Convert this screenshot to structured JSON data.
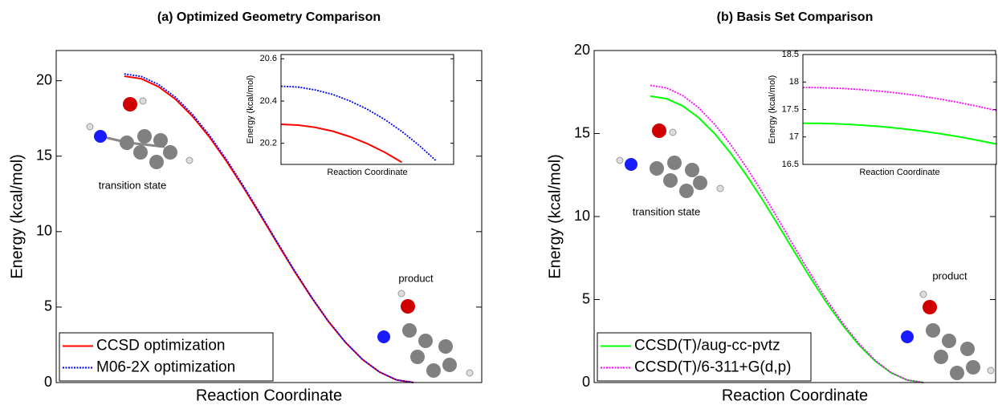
{
  "chart_data": [
    {
      "type": "line",
      "title": "(a) Optimized Geometry Comparison",
      "xlabel": "Reaction Coordinate",
      "ylabel": "Energy (kcal/mol)",
      "x": [
        16,
        20,
        24,
        28,
        32,
        36,
        40,
        44,
        48,
        52,
        56,
        60,
        64,
        68,
        72,
        76,
        80,
        84
      ],
      "xlim": [
        0,
        100
      ],
      "ylim": [
        0,
        22
      ],
      "yticks": [
        0,
        5,
        10,
        15,
        20
      ],
      "legend": "lower left",
      "series": [
        {
          "name": "CCSD optimization",
          "color": "#ff0000",
          "linestyle": "solid",
          "values": [
            20.3,
            20.13,
            19.61,
            18.78,
            17.65,
            16.27,
            14.67,
            12.93,
            11.09,
            9.21,
            7.37,
            5.63,
            4.03,
            2.65,
            1.52,
            0.69,
            0.17,
            0
          ]
        },
        {
          "name": "M06-2X optimization",
          "color": "#0000ff",
          "linestyle": "dotted",
          "values": [
            20.45,
            20.28,
            19.76,
            18.92,
            17.78,
            16.39,
            14.78,
            13.03,
            11.17,
            9.28,
            7.42,
            5.67,
            4.06,
            2.67,
            1.53,
            0.7,
            0.17,
            0
          ]
        }
      ],
      "annotations": [
        "transition state",
        "product"
      ]
    },
    {
      "type": "line",
      "xlabel": "Reaction Coordinate",
      "ylabel": "Energy (kcal/mol)",
      "x": [
        0,
        10,
        20,
        30,
        40,
        50,
        60,
        70,
        80,
        90
      ],
      "xlim": [
        0,
        100
      ],
      "ylim": [
        20.1,
        20.62
      ],
      "yticks": [
        20.2,
        20.4,
        20.6
      ],
      "series": [
        {
          "color": "#ff0000",
          "linestyle": "solid",
          "values": [
            20.29,
            20.286,
            20.275,
            20.257,
            20.231,
            20.198,
            20.158,
            20.11,
            null,
            null
          ]
        },
        {
          "color": "#0000ff",
          "linestyle": "dotted",
          "values": [
            20.47,
            20.466,
            20.452,
            20.431,
            20.4,
            20.361,
            20.313,
            20.256,
            20.19,
            20.116
          ]
        }
      ]
    },
    {
      "type": "line",
      "title": "(b) Basis Set Comparison",
      "xlabel": "Reaction Coordinate",
      "ylabel": "Energy (kcal/mol)",
      "x": [
        14,
        18,
        22,
        26,
        30,
        34,
        38,
        42,
        46,
        50,
        54,
        58,
        62,
        66,
        70,
        74,
        78,
        82
      ],
      "xlim": [
        0,
        100
      ],
      "ylim": [
        0,
        20
      ],
      "yticks": [
        0,
        5,
        10,
        15,
        20
      ],
      "legend": "lower left",
      "series": [
        {
          "name": "CCSD(T)/aug-cc-pvtz",
          "color": "#00ff00",
          "linestyle": "solid",
          "values": [
            17.25,
            17.1,
            16.67,
            15.96,
            15.0,
            13.82,
            12.47,
            10.99,
            9.42,
            7.83,
            6.26,
            4.78,
            3.43,
            2.25,
            1.29,
            0.58,
            0.15,
            0
          ]
        },
        {
          "name": "CCSD(T)/6-311+G(d,p)",
          "color": "#ff00ff",
          "linestyle": "dotted",
          "values": [
            17.9,
            17.75,
            17.3,
            16.56,
            15.56,
            14.34,
            12.94,
            11.4,
            9.78,
            8.12,
            6.5,
            4.96,
            3.56,
            2.34,
            1.34,
            0.6,
            0.15,
            0
          ]
        }
      ],
      "annotations": [
        "transition state",
        "product"
      ]
    },
    {
      "type": "line",
      "xlabel": "Reaction Coordinate",
      "ylabel": "Energy (kcal/mol)",
      "x": [
        0,
        10,
        20,
        30,
        40,
        50,
        60,
        70,
        80,
        90,
        100
      ],
      "xlim": [
        0,
        100
      ],
      "ylim": [
        16.5,
        18.5
      ],
      "yticks": [
        16.5,
        17,
        17.5,
        18,
        18.5
      ],
      "series": [
        {
          "color": "#00ff00",
          "linestyle": "solid",
          "values": [
            17.25,
            17.246,
            17.235,
            17.216,
            17.189,
            17.155,
            17.113,
            17.064,
            17.007,
            16.942,
            16.87
          ]
        },
        {
          "color": "#ff00ff",
          "linestyle": "dotted",
          "values": [
            17.9,
            17.896,
            17.883,
            17.862,
            17.833,
            17.795,
            17.749,
            17.694,
            17.631,
            17.56,
            17.48
          ]
        }
      ]
    }
  ]
}
